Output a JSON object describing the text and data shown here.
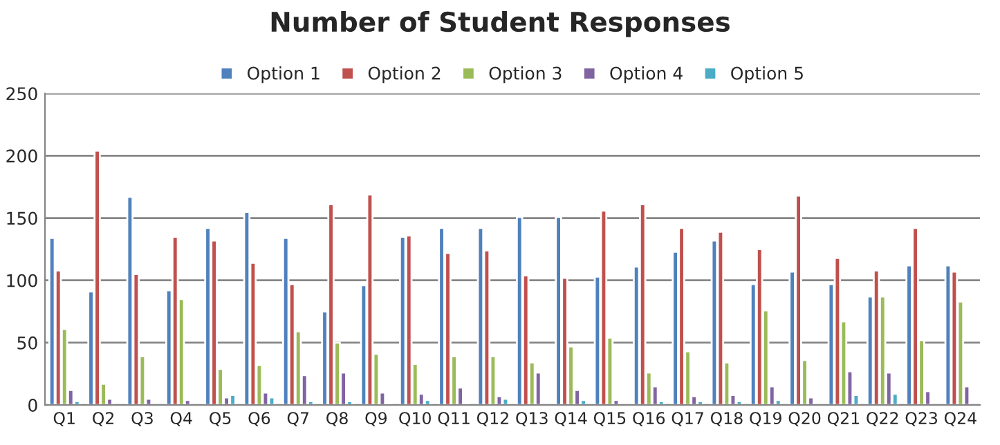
{
  "chart_data": {
    "type": "bar",
    "title": "Number of Student Responses",
    "categories": [
      "Q1",
      "Q2",
      "Q3",
      "Q4",
      "Q5",
      "Q6",
      "Q7",
      "Q8",
      "Q9",
      "Q10",
      "Q11",
      "Q12",
      "Q13",
      "Q14",
      "Q15",
      "Q16",
      "Q17",
      "Q18",
      "Q19",
      "Q20",
      "Q21",
      "Q22",
      "Q23",
      "Q24"
    ],
    "series": [
      {
        "name": "Option 1",
        "color": "#4f81bd",
        "values": [
          134,
          91,
          167,
          92,
          142,
          155,
          134,
          75,
          96,
          135,
          142,
          142,
          151,
          151,
          103,
          111,
          123,
          132,
          97,
          107,
          97,
          87,
          112,
          112
        ]
      },
      {
        "name": "Option 2",
        "color": "#c0504d",
        "values": [
          108,
          204,
          105,
          135,
          132,
          114,
          97,
          161,
          169,
          136,
          122,
          124,
          104,
          102,
          156,
          161,
          142,
          139,
          125,
          168,
          118,
          108,
          142,
          107
        ]
      },
      {
        "name": "Option 3",
        "color": "#9bbb59",
        "values": [
          61,
          17,
          39,
          85,
          29,
          32,
          59,
          50,
          41,
          33,
          39,
          39,
          34,
          47,
          54,
          26,
          43,
          34,
          76,
          36,
          67,
          87,
          52,
          83
        ]
      },
      {
        "name": "Option 4",
        "color": "#8064a2",
        "values": [
          12,
          5,
          5,
          4,
          6,
          10,
          24,
          26,
          10,
          9,
          14,
          7,
          26,
          12,
          4,
          15,
          7,
          8,
          15,
          6,
          27,
          26,
          11,
          15
        ]
      },
      {
        "name": "Option 5",
        "color": "#4bacc6",
        "values": [
          3,
          null,
          null,
          null,
          8,
          6,
          3,
          3,
          1,
          4,
          1,
          5,
          null,
          4,
          null,
          3,
          3,
          3,
          4,
          null,
          8,
          9,
          null,
          null
        ]
      }
    ],
    "ylim": [
      0,
      250
    ],
    "yticks": [
      0,
      50,
      100,
      150,
      200,
      250
    ],
    "grid": "y",
    "legend": "top"
  }
}
